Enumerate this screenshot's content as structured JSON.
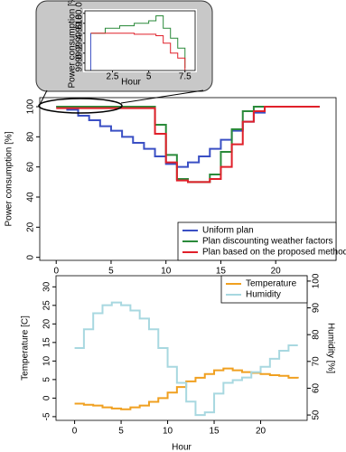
{
  "chart_data": [
    {
      "type": "line",
      "step": "post",
      "xlabel": "Hour",
      "ylabel": "Power consumption [%]",
      "xlim": [
        0.6,
        8.2
      ],
      "xticks": [
        2.5,
        5,
        7.5
      ],
      "ylim": [
        98.85,
        100.05
      ],
      "yticks": [
        {
          "value": 99.0,
          "label": "99.0"
        },
        {
          "value": 99.2,
          "label": "99.2"
        },
        {
          "value": 99.4,
          "label": "99.4"
        },
        {
          "value": 99.6,
          "label": "99.6"
        },
        {
          "value": 99.8,
          "label": "99.8"
        },
        {
          "value": 100.0,
          "label": "100.0"
        }
      ],
      "series": [
        {
          "color": "#2a8a3a",
          "x": [
            1,
            2,
            3,
            4,
            5,
            5.5,
            6,
            6.5,
            7,
            7.5
          ],
          "values": [
            99.6,
            99.7,
            99.75,
            99.8,
            99.85,
            99.95,
            99.7,
            99.5,
            99.3,
            98.9
          ]
        },
        {
          "color": "#e0202a",
          "x": [
            1,
            2,
            3,
            4,
            5,
            5.5,
            6,
            6.5,
            7,
            7.5
          ],
          "values": [
            99.6,
            99.6,
            99.6,
            99.58,
            99.58,
            99.55,
            99.4,
            99.2,
            99.1,
            98.85
          ]
        },
        {
          "color": "#3a4fc4",
          "x": [
            1,
            1
          ],
          "values": [
            99.6,
            98.85
          ]
        }
      ]
    },
    {
      "type": "line",
      "step": "post",
      "ylabel": "Power consumption [%]",
      "legend": "bottom-right",
      "xlim": [
        -1.5,
        25.5
      ],
      "xticks": [
        0,
        5,
        10,
        15,
        20
      ],
      "ylim": [
        -2,
        106
      ],
      "yticks": [
        0,
        20,
        40,
        60,
        80,
        100
      ],
      "x": [
        0,
        1,
        2,
        3,
        4,
        5,
        6,
        7,
        8,
        9,
        10,
        11,
        12,
        13,
        14,
        15,
        16,
        17,
        18,
        19,
        20,
        21,
        22,
        23,
        24
      ],
      "series": [
        {
          "name": "Uniform plan",
          "color": "#3a4fc4",
          "values": [
            100,
            98,
            94,
            91,
            87,
            84,
            80,
            76,
            72,
            67,
            62,
            60,
            63,
            67,
            72,
            78,
            84,
            90,
            96,
            100,
            100,
            100,
            100,
            100,
            100
          ]
        },
        {
          "name": "Plan discounting weather factors",
          "color": "#2a8a3a",
          "values": [
            100,
            100,
            100,
            100,
            100,
            100,
            100,
            100,
            100,
            88,
            68,
            52,
            50,
            50,
            55,
            70,
            85,
            97,
            100,
            100,
            100,
            100,
            100,
            100,
            100
          ]
        },
        {
          "name": "Plan based on the proposed method",
          "color": "#e0202a",
          "values": [
            99,
            99,
            99,
            99,
            99,
            99,
            99,
            99,
            99,
            82,
            63,
            51,
            50,
            50,
            52,
            60,
            75,
            90,
            97,
            100,
            100,
            100,
            100,
            100,
            100
          ]
        }
      ]
    },
    {
      "type": "line",
      "step": "post",
      "xlabel": "Hour",
      "ylabel": "Temperature [C]",
      "y2label": "Humidity [%]",
      "legend": "top-right",
      "xlim": [
        -2,
        25
      ],
      "xticks": [
        0,
        5,
        10,
        15,
        20
      ],
      "ylim": [
        -6,
        33
      ],
      "yticks": [
        -5,
        0,
        5,
        10,
        15,
        20,
        25,
        30
      ],
      "y2lim": [
        48,
        102
      ],
      "y2ticks": [
        50,
        60,
        70,
        80,
        90,
        100
      ],
      "x": [
        0,
        1,
        2,
        3,
        4,
        5,
        6,
        7,
        8,
        9,
        10,
        11,
        12,
        13,
        14,
        15,
        16,
        17,
        18,
        19,
        20,
        21,
        22,
        23,
        24
      ],
      "series": [
        {
          "name": "Temperature",
          "color": "#f0a020",
          "values": [
            -1.5,
            -1.8,
            -2,
            -2.5,
            -2.8,
            -3,
            -2.5,
            -2,
            -1,
            0,
            1.5,
            3,
            4.5,
            5.5,
            6.5,
            7.5,
            8,
            7.5,
            7,
            6.8,
            6.5,
            6.2,
            6,
            5.5,
            5.3
          ]
        },
        {
          "name": "Humidity",
          "color": "#a8d8e0",
          "axis": "y2",
          "values": [
            75,
            82,
            88,
            91,
            92,
            91,
            89,
            86,
            82,
            75,
            68,
            62,
            55,
            50,
            51,
            58,
            62,
            63,
            64,
            66,
            68,
            71,
            74,
            76,
            76
          ]
        }
      ]
    }
  ]
}
